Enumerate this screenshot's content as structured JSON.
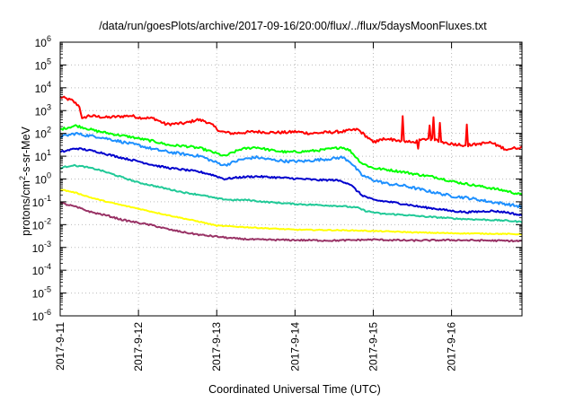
{
  "chart_data": {
    "type": "line",
    "title": "/data/run/goesPlots/archive/2017-09-16/20:00/flux/../flux/5daysMoonFluxes.txt",
    "xlabel": "Coordinated Universal Time (UTC)",
    "ylabel_parts": [
      "protons/cm",
      "2",
      "-s-sr-MeV"
    ],
    "y_scale": "log",
    "ylim": [
      1e-06,
      1000000.0
    ],
    "xlim_days": [
      0,
      5.9
    ],
    "x_ticks": [
      {
        "day": 0,
        "label": "2017-9-11"
      },
      {
        "day": 1,
        "label": "2017-9-12"
      },
      {
        "day": 2,
        "label": "2017-9-13"
      },
      {
        "day": 3,
        "label": "2017-9-14"
      },
      {
        "day": 4,
        "label": "2017-9-15"
      },
      {
        "day": 5,
        "label": "2017-9-16"
      }
    ],
    "y_ticks": [
      {
        "exp": -6,
        "label": "10",
        "sup": "-6"
      },
      {
        "exp": -5,
        "label": "10",
        "sup": "-5"
      },
      {
        "exp": -4,
        "label": "10",
        "sup": "-4"
      },
      {
        "exp": -3,
        "label": "10",
        "sup": "-3"
      },
      {
        "exp": -2,
        "label": "10",
        "sup": "-2"
      },
      {
        "exp": -1,
        "label": "10",
        "sup": "-1"
      },
      {
        "exp": 0,
        "label": "10",
        "sup": "0"
      },
      {
        "exp": 1,
        "label": "10",
        "sup": "1"
      },
      {
        "exp": 2,
        "label": "10",
        "sup": "2"
      },
      {
        "exp": 3,
        "label": "10",
        "sup": "3"
      },
      {
        "exp": 4,
        "label": "10",
        "sup": "4"
      },
      {
        "exp": 5,
        "label": "10",
        "sup": "5"
      },
      {
        "exp": 6,
        "label": "10",
        "sup": "6"
      }
    ],
    "grid": true,
    "legend": "none",
    "series": [
      {
        "color": "#ff0000",
        "noise": 0.06,
        "spiky": true,
        "points": [
          [
            0,
            4000
          ],
          [
            0.15,
            2800
          ],
          [
            0.25,
            1500
          ],
          [
            0.28,
            400
          ],
          [
            0.35,
            600
          ],
          [
            0.6,
            500
          ],
          [
            0.9,
            600
          ],
          [
            1.0,
            500
          ],
          [
            1.2,
            450
          ],
          [
            1.35,
            250
          ],
          [
            1.6,
            280
          ],
          [
            1.75,
            400
          ],
          [
            1.85,
            350
          ],
          [
            1.95,
            220
          ],
          [
            2.05,
            120
          ],
          [
            2.2,
            100
          ],
          [
            2.5,
            120
          ],
          [
            2.7,
            110
          ],
          [
            2.9,
            110
          ],
          [
            3.0,
            120
          ],
          [
            3.2,
            100
          ],
          [
            3.4,
            110
          ],
          [
            3.6,
            120
          ],
          [
            3.8,
            150
          ],
          [
            3.9,
            80
          ],
          [
            4.0,
            40
          ],
          [
            4.15,
            60
          ],
          [
            4.3,
            50
          ],
          [
            4.5,
            40
          ],
          [
            4.7,
            60
          ],
          [
            4.9,
            40
          ],
          [
            5.0,
            35
          ],
          [
            5.2,
            30
          ],
          [
            5.5,
            40
          ],
          [
            5.7,
            20
          ],
          [
            5.9,
            25
          ]
        ]
      },
      {
        "color": "#00ff00",
        "noise": 0.05,
        "spiky": false,
        "points": [
          [
            0,
            150
          ],
          [
            0.2,
            220
          ],
          [
            0.3,
            180
          ],
          [
            0.45,
            130
          ],
          [
            0.7,
            90
          ],
          [
            0.9,
            70
          ],
          [
            1.0,
            60
          ],
          [
            1.2,
            45
          ],
          [
            1.4,
            30
          ],
          [
            1.6,
            28
          ],
          [
            1.8,
            22
          ],
          [
            1.95,
            15
          ],
          [
            2.1,
            10
          ],
          [
            2.3,
            20
          ],
          [
            2.5,
            25
          ],
          [
            2.7,
            18
          ],
          [
            2.9,
            15
          ],
          [
            3.1,
            16
          ],
          [
            3.3,
            18
          ],
          [
            3.5,
            22
          ],
          [
            3.6,
            25
          ],
          [
            3.7,
            18
          ],
          [
            3.85,
            5
          ],
          [
            4.0,
            3
          ],
          [
            4.2,
            2.5
          ],
          [
            4.4,
            2
          ],
          [
            4.6,
            1.5
          ],
          [
            4.8,
            1.2
          ],
          [
            5.0,
            0.8
          ],
          [
            5.2,
            0.6
          ],
          [
            5.5,
            0.4
          ],
          [
            5.7,
            0.3
          ],
          [
            5.9,
            0.2
          ]
        ]
      },
      {
        "color": "#1e90ff",
        "noise": 0.06,
        "spiky": false,
        "points": [
          [
            0,
            70
          ],
          [
            0.2,
            100
          ],
          [
            0.3,
            85
          ],
          [
            0.5,
            70
          ],
          [
            0.7,
            50
          ],
          [
            0.9,
            35
          ],
          [
            1.0,
            30
          ],
          [
            1.2,
            20
          ],
          [
            1.4,
            15
          ],
          [
            1.6,
            12
          ],
          [
            1.8,
            10
          ],
          [
            1.95,
            6
          ],
          [
            2.1,
            4
          ],
          [
            2.3,
            7
          ],
          [
            2.5,
            9
          ],
          [
            2.7,
            7
          ],
          [
            2.9,
            6
          ],
          [
            3.1,
            6
          ],
          [
            3.3,
            7
          ],
          [
            3.5,
            8
          ],
          [
            3.6,
            9
          ],
          [
            3.7,
            6
          ],
          [
            3.85,
            1.5
          ],
          [
            4.0,
            0.9
          ],
          [
            4.2,
            0.6
          ],
          [
            4.4,
            0.5
          ],
          [
            4.6,
            0.35
          ],
          [
            4.8,
            0.25
          ],
          [
            5.0,
            0.18
          ],
          [
            5.2,
            0.15
          ],
          [
            5.5,
            0.1
          ],
          [
            5.7,
            0.08
          ],
          [
            5.9,
            0.06
          ]
        ]
      },
      {
        "color": "#0000cd",
        "noise": 0.04,
        "spiky": false,
        "points": [
          [
            0,
            15
          ],
          [
            0.2,
            22
          ],
          [
            0.3,
            20
          ],
          [
            0.5,
            15
          ],
          [
            0.7,
            10
          ],
          [
            0.9,
            7
          ],
          [
            1.0,
            6
          ],
          [
            1.2,
            4
          ],
          [
            1.4,
            3
          ],
          [
            1.6,
            2.5
          ],
          [
            1.8,
            2
          ],
          [
            1.95,
            1.5
          ],
          [
            2.1,
            1.0
          ],
          [
            2.3,
            1.2
          ],
          [
            2.5,
            1.3
          ],
          [
            2.7,
            1.2
          ],
          [
            2.9,
            1.1
          ],
          [
            3.1,
            1.0
          ],
          [
            3.3,
            0.9
          ],
          [
            3.5,
            0.9
          ],
          [
            3.6,
            0.8
          ],
          [
            3.7,
            0.6
          ],
          [
            3.85,
            0.2
          ],
          [
            4.0,
            0.12
          ],
          [
            4.2,
            0.1
          ],
          [
            4.4,
            0.08
          ],
          [
            4.6,
            0.06
          ],
          [
            4.8,
            0.05
          ],
          [
            5.0,
            0.04
          ],
          [
            5.2,
            0.035
          ],
          [
            5.5,
            0.04
          ],
          [
            5.7,
            0.035
          ],
          [
            5.9,
            0.025
          ]
        ]
      },
      {
        "color": "#20c997",
        "noise": 0.03,
        "spiky": false,
        "points": [
          [
            0,
            3
          ],
          [
            0.15,
            4
          ],
          [
            0.3,
            3.5
          ],
          [
            0.5,
            2.5
          ],
          [
            0.7,
            1.5
          ],
          [
            0.9,
            0.9
          ],
          [
            1.0,
            0.7
          ],
          [
            1.2,
            0.5
          ],
          [
            1.4,
            0.35
          ],
          [
            1.6,
            0.25
          ],
          [
            1.8,
            0.2
          ],
          [
            2.0,
            0.14
          ],
          [
            2.2,
            0.12
          ],
          [
            2.4,
            0.12
          ],
          [
            2.6,
            0.1
          ],
          [
            2.8,
            0.09
          ],
          [
            3.0,
            0.08
          ],
          [
            3.2,
            0.075
          ],
          [
            3.4,
            0.07
          ],
          [
            3.6,
            0.065
          ],
          [
            3.8,
            0.055
          ],
          [
            3.9,
            0.04
          ],
          [
            4.1,
            0.03
          ],
          [
            4.3,
            0.028
          ],
          [
            4.5,
            0.025
          ],
          [
            4.7,
            0.022
          ],
          [
            4.9,
            0.02
          ],
          [
            5.1,
            0.018
          ],
          [
            5.3,
            0.017
          ],
          [
            5.5,
            0.016
          ],
          [
            5.7,
            0.015
          ],
          [
            5.9,
            0.013
          ]
        ]
      },
      {
        "color": "#ffff00",
        "noise": 0.02,
        "spiky": false,
        "points": [
          [
            0,
            0.35
          ],
          [
            0.2,
            0.25
          ],
          [
            0.4,
            0.15
          ],
          [
            0.6,
            0.1
          ],
          [
            0.8,
            0.07
          ],
          [
            1.0,
            0.05
          ],
          [
            1.2,
            0.035
          ],
          [
            1.4,
            0.025
          ],
          [
            1.6,
            0.018
          ],
          [
            1.8,
            0.013
          ],
          [
            2.0,
            0.009
          ],
          [
            2.3,
            0.008
          ],
          [
            2.6,
            0.007
          ],
          [
            3.0,
            0.006
          ],
          [
            3.4,
            0.0058
          ],
          [
            3.8,
            0.0055
          ],
          [
            4.2,
            0.005
          ],
          [
            4.6,
            0.0045
          ],
          [
            5.0,
            0.0042
          ],
          [
            5.5,
            0.004
          ],
          [
            5.9,
            0.0038
          ]
        ]
      },
      {
        "color": "#993366",
        "noise": 0.035,
        "spiky": false,
        "points": [
          [
            0,
            0.09
          ],
          [
            0.2,
            0.06
          ],
          [
            0.4,
            0.035
          ],
          [
            0.6,
            0.025
          ],
          [
            0.8,
            0.016
          ],
          [
            1.0,
            0.012
          ],
          [
            1.2,
            0.009
          ],
          [
            1.4,
            0.006
          ],
          [
            1.6,
            0.0045
          ],
          [
            1.8,
            0.0035
          ],
          [
            2.0,
            0.003
          ],
          [
            2.2,
            0.0025
          ],
          [
            2.5,
            0.0022
          ],
          [
            3.0,
            0.0021
          ],
          [
            3.5,
            0.002
          ],
          [
            4.0,
            0.0022
          ],
          [
            4.5,
            0.002
          ],
          [
            5.0,
            0.0021
          ],
          [
            5.5,
            0.002
          ],
          [
            5.9,
            0.0019
          ]
        ]
      }
    ]
  }
}
